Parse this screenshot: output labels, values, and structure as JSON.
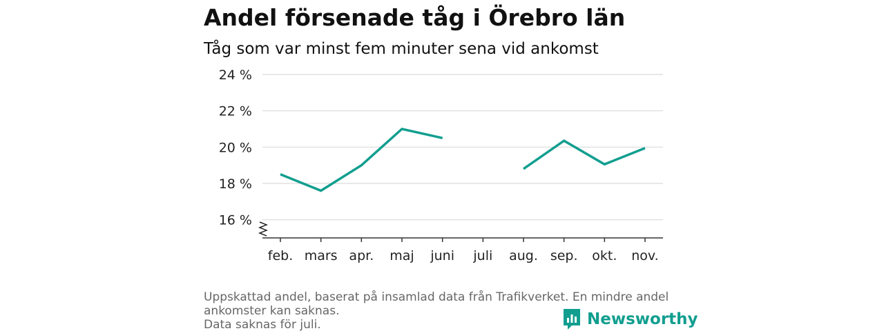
{
  "header": {
    "title": "Andel försenade tåg i Örebro län",
    "subtitle": "Tåg som var minst fem minuter sena vid ankomst"
  },
  "chart_data": {
    "type": "line",
    "categories": [
      "feb.",
      "mars",
      "apr.",
      "maj",
      "juni",
      "juli",
      "aug.",
      "sep.",
      "okt.",
      "nov."
    ],
    "series": [
      {
        "values": [
          18.5,
          17.6,
          19.0,
          21.0,
          20.5,
          null,
          18.8,
          20.35,
          19.05,
          19.95
        ]
      }
    ],
    "yticks": [
      16,
      18,
      20,
      22,
      24
    ],
    "ytick_labels": [
      "16 %",
      "18 %",
      "20 %",
      "22 %",
      "24 %"
    ],
    "ylim": [
      15,
      24
    ],
    "y_axis_break": true,
    "grid": "horizontal",
    "legend": "none",
    "colors": {
      "line": "#119e8f",
      "grid": "#d9d9d9",
      "axis": "#333333"
    }
  },
  "footnote": {
    "line1": "Uppskattad andel, baserat på insamlad data från Trafikverket. En mindre andel ankomster kan saknas.",
    "line2": "Data saknas för juli."
  },
  "logo": {
    "text": "Newsworthy",
    "icon": "newsworthy-logo-icon",
    "color": "#119e8f"
  }
}
